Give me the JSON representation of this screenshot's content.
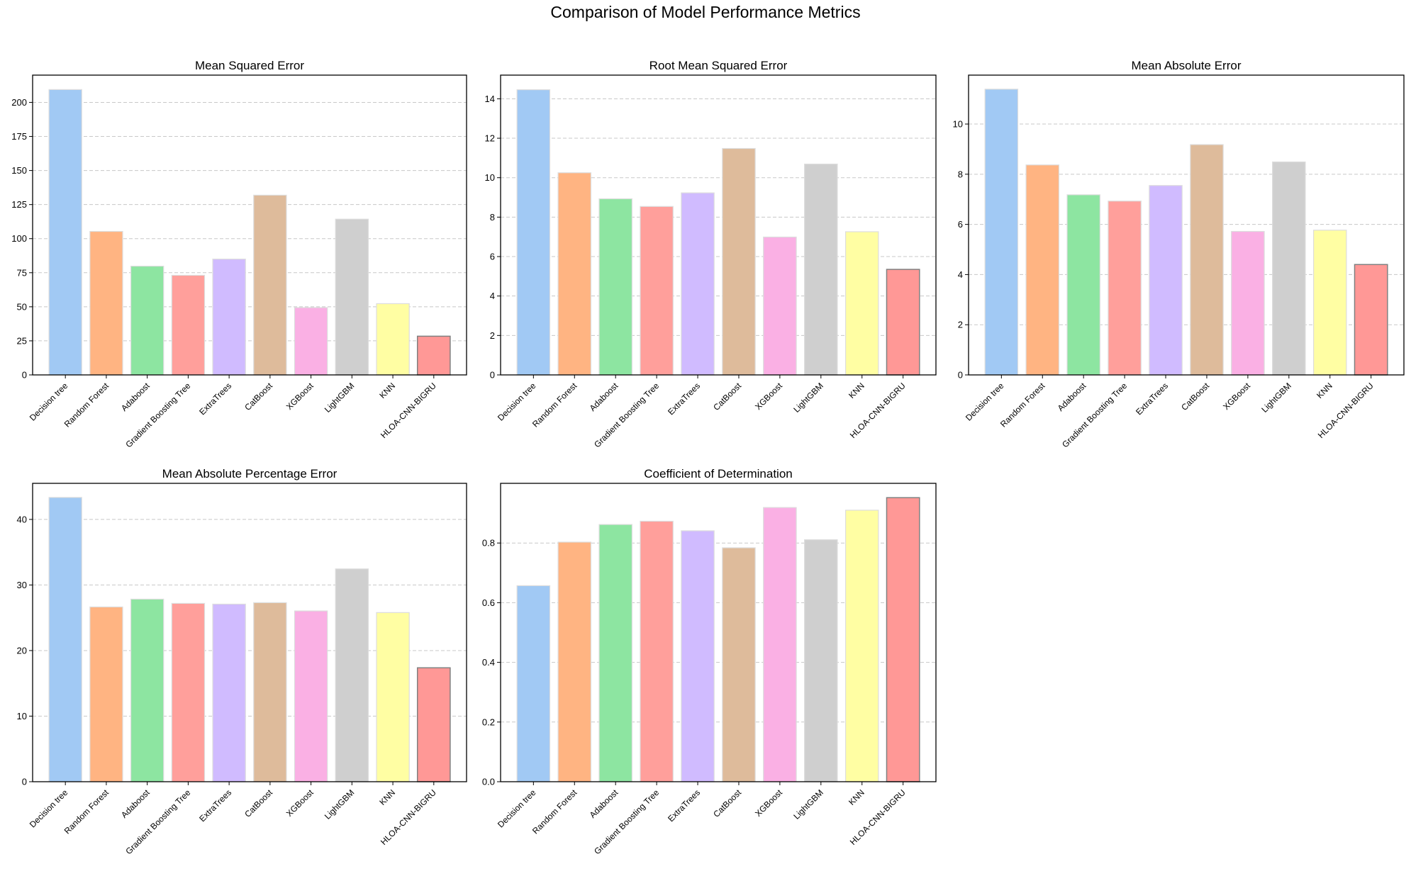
{
  "figure": {
    "title": "Comparison of Model Performance Metrics"
  },
  "chart_data": [
    {
      "type": "bar",
      "title": "Mean Squared Error",
      "xlabel": "",
      "ylabel": "",
      "categories": [
        "Decision tree",
        "Random Forest",
        "Adaboost",
        "Gradient Boosting Tree",
        "ExtraTrees",
        "CatBoost",
        "XGBoost",
        "LightGBM",
        "KNN",
        "HLOA-CNN-BIGRU"
      ],
      "values": [
        209.4,
        105.3,
        79.8,
        73.1,
        85.0,
        131.9,
        49.4,
        114.3,
        52.3,
        28.4
      ],
      "ylim": [
        0,
        220
      ],
      "yticks": [
        0,
        25,
        50,
        75,
        100,
        125,
        150,
        175,
        200
      ],
      "grid": "y-dashed"
    },
    {
      "type": "bar",
      "title": "Root Mean Squared Error",
      "xlabel": "",
      "ylabel": "",
      "categories": [
        "Decision tree",
        "Random Forest",
        "Adaboost",
        "Gradient Boosting Tree",
        "ExtraTrees",
        "CatBoost",
        "XGBoost",
        "LightGBM",
        "KNN",
        "HLOA-CNN-BIGRU"
      ],
      "values": [
        14.46,
        10.25,
        8.93,
        8.54,
        9.23,
        11.48,
        6.99,
        10.69,
        7.26,
        5.35
      ],
      "ylim": [
        0,
        15.2
      ],
      "yticks": [
        0,
        2,
        4,
        6,
        8,
        10,
        12,
        14
      ],
      "grid": "y-dashed"
    },
    {
      "type": "bar",
      "title": "Mean Absolute Error",
      "xlabel": "",
      "ylabel": "",
      "categories": [
        "Decision tree",
        "Random Forest",
        "Adaboost",
        "Gradient Boosting Tree",
        "ExtraTrees",
        "CatBoost",
        "XGBoost",
        "LightGBM",
        "KNN",
        "HLOA-CNN-BIGRU"
      ],
      "values": [
        11.39,
        8.37,
        7.18,
        6.93,
        7.55,
        9.18,
        5.72,
        8.49,
        5.77,
        4.4
      ],
      "ylim": [
        0,
        11.95
      ],
      "yticks": [
        0,
        2,
        4,
        6,
        8,
        10
      ],
      "grid": "y-dashed"
    },
    {
      "type": "bar",
      "title": "Mean Absolute Percentage Error",
      "xlabel": "",
      "ylabel": "",
      "categories": [
        "Decision tree",
        "Random Forest",
        "Adaboost",
        "Gradient Boosting Tree",
        "ExtraTrees",
        "CatBoost",
        "XGBoost",
        "LightGBM",
        "KNN",
        "HLOA-CNN-BIGRU"
      ],
      "values": [
        43.35,
        26.65,
        27.84,
        27.19,
        27.08,
        27.3,
        26.04,
        32.45,
        25.79,
        17.37
      ],
      "ylim": [
        0,
        45.5
      ],
      "yticks": [
        0,
        10,
        20,
        30,
        40
      ],
      "grid": "y-dashed"
    },
    {
      "type": "bar",
      "title": "Coefficient of Determination",
      "xlabel": "",
      "ylabel": "",
      "categories": [
        "Decision tree",
        "Random Forest",
        "Adaboost",
        "Gradient Boosting Tree",
        "ExtraTrees",
        "CatBoost",
        "XGBoost",
        "LightGBM",
        "KNN",
        "HLOA-CNN-BIGRU"
      ],
      "values": [
        0.657,
        0.803,
        0.862,
        0.873,
        0.841,
        0.784,
        0.919,
        0.811,
        0.91,
        0.952
      ],
      "ylim": [
        0,
        1.0
      ],
      "yticks": [
        0.0,
        0.2,
        0.4,
        0.6,
        0.8
      ],
      "ytick_labels": [
        "0.0",
        "0.2",
        "0.4",
        "0.6",
        "0.8"
      ],
      "grid": "y-dashed"
    }
  ],
  "colors": {
    "bars": [
      "#a1c9f4",
      "#ffb482",
      "#8de5a1",
      "#ff9f9b",
      "#d0bbff",
      "#debb9b",
      "#fab0e4",
      "#cfcfcf",
      "#fffea3",
      "#ff9896"
    ],
    "bar_edge": "#dddddd",
    "highlight_edge": "#808080",
    "grid": "#c8c8c8",
    "axis": "#000000"
  }
}
